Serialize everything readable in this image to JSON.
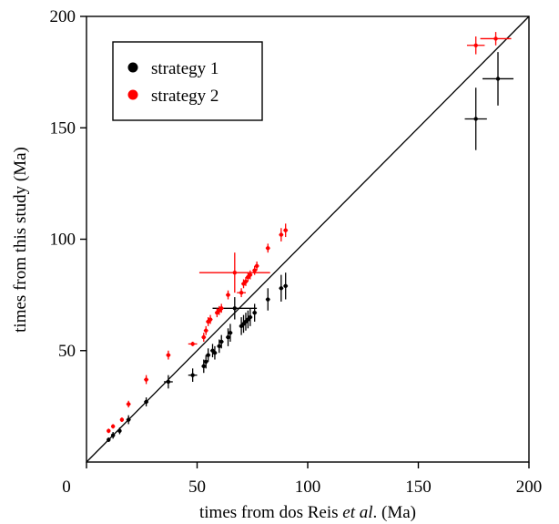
{
  "chart_data": {
    "type": "scatter",
    "xlabel": "times from dos Reis et al. (Ma)",
    "xlabel_parts": {
      "before": "times from dos Reis ",
      "italic": "et al",
      "after": ". (Ma)"
    },
    "ylabel": "times from this study (Ma)",
    "xlim": [
      0,
      200
    ],
    "ylim": [
      0,
      200
    ],
    "x_ticks": [
      0,
      50,
      100,
      150,
      200
    ],
    "y_ticks": [
      50,
      100,
      150,
      200
    ],
    "x_tick_labels": [
      "0",
      "50",
      "100",
      "150",
      "200"
    ],
    "y_tick_labels": [
      "50",
      "100",
      "150",
      "200"
    ],
    "grid": false,
    "legend_position": "top-left",
    "reference_line": "y = x",
    "series": [
      {
        "name": "strategy 1",
        "color": "#000000",
        "points": [
          {
            "x": 10,
            "y": 10,
            "xerr": 0.8,
            "yerr": 1
          },
          {
            "x": 12,
            "y": 12,
            "xerr": 0.8,
            "yerr": 1.5
          },
          {
            "x": 15,
            "y": 14,
            "xerr": 0.8,
            "yerr": 1.5
          },
          {
            "x": 19,
            "y": 19,
            "xerr": 1,
            "yerr": 2
          },
          {
            "x": 27,
            "y": 27,
            "xerr": 1,
            "yerr": 2
          },
          {
            "x": 37,
            "y": 36,
            "xerr": 2,
            "yerr": 3
          },
          {
            "x": 48,
            "y": 39,
            "xerr": 2,
            "yerr": 3
          },
          {
            "x": 53,
            "y": 43,
            "xerr": 1,
            "yerr": 3
          },
          {
            "x": 54,
            "y": 45,
            "xerr": 1,
            "yerr": 3
          },
          {
            "x": 55,
            "y": 48,
            "xerr": 1,
            "yerr": 3
          },
          {
            "x": 57,
            "y": 50,
            "xerr": 1,
            "yerr": 3
          },
          {
            "x": 58,
            "y": 49,
            "xerr": 1,
            "yerr": 3
          },
          {
            "x": 60,
            "y": 52,
            "xerr": 1,
            "yerr": 3
          },
          {
            "x": 61,
            "y": 54,
            "xerr": 1,
            "yerr": 3
          },
          {
            "x": 64,
            "y": 56,
            "xerr": 1,
            "yerr": 4
          },
          {
            "x": 65,
            "y": 58,
            "xerr": 1,
            "yerr": 4
          },
          {
            "x": 67,
            "y": 69,
            "xerr": 10,
            "yerr": 5
          },
          {
            "x": 70,
            "y": 61,
            "xerr": 1,
            "yerr": 4
          },
          {
            "x": 71,
            "y": 62,
            "xerr": 1,
            "yerr": 4
          },
          {
            "x": 72,
            "y": 63,
            "xerr": 1,
            "yerr": 4
          },
          {
            "x": 73,
            "y": 64,
            "xerr": 1,
            "yerr": 4
          },
          {
            "x": 74,
            "y": 65,
            "xerr": 1,
            "yerr": 4
          },
          {
            "x": 76,
            "y": 67,
            "xerr": 1,
            "yerr": 4
          },
          {
            "x": 82,
            "y": 73,
            "xerr": 1,
            "yerr": 5
          },
          {
            "x": 88,
            "y": 78,
            "xerr": 1,
            "yerr": 6
          },
          {
            "x": 90,
            "y": 79,
            "xerr": 1,
            "yerr": 6
          },
          {
            "x": 176,
            "y": 154,
            "xerr": 5,
            "yerr": 14
          },
          {
            "x": 186,
            "y": 172,
            "xerr": 7,
            "yerr": 12
          }
        ]
      },
      {
        "name": "strategy 2",
        "color": "#ff0000",
        "points": [
          {
            "x": 10,
            "y": 14,
            "xerr": 0.8,
            "yerr": 1
          },
          {
            "x": 12,
            "y": 16,
            "xerr": 0.8,
            "yerr": 1
          },
          {
            "x": 16,
            "y": 19,
            "xerr": 0.8,
            "yerr": 1
          },
          {
            "x": 19,
            "y": 26,
            "xerr": 1,
            "yerr": 1.5
          },
          {
            "x": 27,
            "y": 37,
            "xerr": 1,
            "yerr": 2
          },
          {
            "x": 37,
            "y": 48,
            "xerr": 1,
            "yerr": 2
          },
          {
            "x": 48,
            "y": 53,
            "xerr": 2,
            "yerr": 1
          },
          {
            "x": 53,
            "y": 56,
            "xerr": 1,
            "yerr": 2
          },
          {
            "x": 54,
            "y": 59,
            "xerr": 1,
            "yerr": 2
          },
          {
            "x": 55,
            "y": 63,
            "xerr": 1,
            "yerr": 2
          },
          {
            "x": 56,
            "y": 64,
            "xerr": 1,
            "yerr": 2
          },
          {
            "x": 59,
            "y": 67,
            "xerr": 1,
            "yerr": 2
          },
          {
            "x": 60,
            "y": 68,
            "xerr": 1,
            "yerr": 2
          },
          {
            "x": 61,
            "y": 69,
            "xerr": 1,
            "yerr": 2
          },
          {
            "x": 64,
            "y": 75,
            "xerr": 1,
            "yerr": 2
          },
          {
            "x": 67,
            "y": 85,
            "xerr": 16,
            "yerr": 9
          },
          {
            "x": 70,
            "y": 76,
            "xerr": 2,
            "yerr": 2
          },
          {
            "x": 71,
            "y": 80,
            "xerr": 1,
            "yerr": 2
          },
          {
            "x": 72,
            "y": 81,
            "xerr": 1,
            "yerr": 2
          },
          {
            "x": 73,
            "y": 83,
            "xerr": 1,
            "yerr": 2
          },
          {
            "x": 74,
            "y": 84,
            "xerr": 1,
            "yerr": 2
          },
          {
            "x": 76,
            "y": 86,
            "xerr": 1,
            "yerr": 2
          },
          {
            "x": 77,
            "y": 88,
            "xerr": 1,
            "yerr": 2
          },
          {
            "x": 82,
            "y": 96,
            "xerr": 1,
            "yerr": 2
          },
          {
            "x": 88,
            "y": 102,
            "xerr": 1,
            "yerr": 3
          },
          {
            "x": 90,
            "y": 104,
            "xerr": 1,
            "yerr": 3
          },
          {
            "x": 176,
            "y": 187,
            "xerr": 4,
            "yerr": 4
          },
          {
            "x": 185,
            "y": 190,
            "xerr": 7,
            "yerr": 3
          }
        ]
      }
    ]
  }
}
